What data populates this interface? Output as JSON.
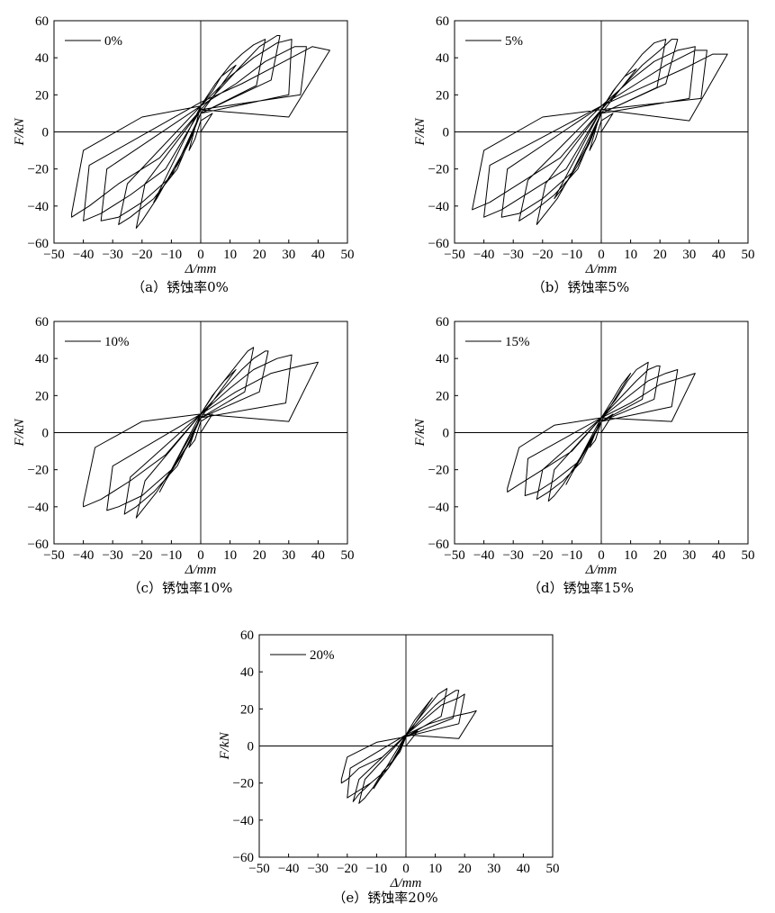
{
  "chart_data": [
    {
      "type": "line",
      "caption": "（a）锈蚀率0%",
      "legend": "0%",
      "xlabel": "Δ/mm",
      "ylabel": "F/kN",
      "xlim": [
        -50,
        50
      ],
      "ylim": [
        -60,
        60
      ],
      "xticks": [
        "−50",
        "−40",
        "−30",
        "−20",
        "−10",
        "0",
        "10",
        "20",
        "30",
        "40",
        "50"
      ],
      "yticks": [
        "60",
        "40",
        "20",
        "0",
        "−20",
        "−40",
        "−60"
      ],
      "series": [
        {
          "x": [
            0,
            2,
            4,
            0,
            -2,
            -4,
            0,
            4,
            7,
            12,
            0,
            -4,
            -8,
            -13,
            -16,
            0,
            5,
            10,
            14,
            18,
            22,
            19,
            0,
            -5,
            -10,
            -15,
            -20,
            -22,
            -19,
            0,
            7,
            14,
            20,
            26,
            27,
            24,
            0,
            -8,
            -16,
            -24,
            -28,
            -25,
            0,
            10,
            18,
            26,
            31,
            30,
            0,
            -10,
            -20,
            -28,
            -34,
            -32,
            0,
            12,
            22,
            32,
            36,
            34,
            0,
            -12,
            -24,
            -34,
            -40,
            -38,
            0,
            14,
            26,
            38,
            44,
            30,
            0,
            -14,
            -28,
            -38,
            -44,
            -44,
            -40,
            -20,
            0
          ],
          "y": [
            0,
            5,
            10,
            6,
            -4,
            -10,
            14,
            22,
            30,
            36,
            10,
            -6,
            -18,
            -30,
            -38,
            14,
            26,
            36,
            42,
            47,
            50,
            25,
            10,
            -8,
            -22,
            -36,
            -48,
            -52,
            -28,
            12,
            24,
            36,
            46,
            52,
            52,
            28,
            10,
            -20,
            -36,
            -46,
            -50,
            -28,
            14,
            30,
            40,
            48,
            50,
            20,
            10,
            -24,
            -38,
            -46,
            -48,
            -20,
            14,
            26,
            38,
            46,
            46,
            20,
            12,
            -20,
            -34,
            -44,
            -48,
            -18,
            16,
            26,
            36,
            46,
            44,
            8,
            12,
            -14,
            -28,
            -40,
            -46,
            -44,
            -10,
            8,
            14
          ]
        }
      ]
    },
    {
      "type": "line",
      "caption": "（b）锈蚀率5%",
      "legend": "5%",
      "xlabel": "Δ/mm",
      "ylabel": "F/kN",
      "xlim": [
        -50,
        50
      ],
      "ylim": [
        -60,
        60
      ],
      "xticks": [
        "−50",
        "−40",
        "−30",
        "−20",
        "−10",
        "0",
        "10",
        "20",
        "30",
        "40",
        "50"
      ],
      "yticks": [
        "60",
        "40",
        "20",
        "0",
        "−20",
        "−40",
        "−60"
      ],
      "series": [
        {
          "x": [
            0,
            2,
            4,
            0,
            -2,
            -4,
            0,
            4,
            8,
            12,
            0,
            -4,
            -8,
            -13,
            -16,
            0,
            5,
            10,
            14,
            18,
            22,
            19,
            0,
            -5,
            -10,
            -15,
            -20,
            -22,
            -19,
            0,
            7,
            14,
            20,
            24,
            26,
            22,
            0,
            -8,
            -16,
            -24,
            -28,
            -25,
            0,
            10,
            18,
            26,
            32,
            30,
            0,
            -10,
            -20,
            -28,
            -34,
            -32,
            0,
            12,
            22,
            32,
            36,
            34,
            0,
            -12,
            -24,
            -34,
            -40,
            -38,
            0,
            14,
            28,
            38,
            43,
            30,
            0,
            -14,
            -28,
            -38,
            -44,
            -44,
            -40,
            -20,
            0
          ],
          "y": [
            0,
            5,
            10,
            6,
            -4,
            -10,
            12,
            22,
            30,
            34,
            10,
            -6,
            -18,
            -30,
            -36,
            12,
            24,
            34,
            42,
            48,
            50,
            24,
            10,
            -8,
            -22,
            -36,
            -46,
            -50,
            -28,
            12,
            24,
            36,
            44,
            50,
            50,
            26,
            10,
            -20,
            -34,
            -44,
            -48,
            -26,
            14,
            28,
            38,
            44,
            46,
            18,
            10,
            -22,
            -36,
            -44,
            -46,
            -20,
            14,
            26,
            36,
            44,
            44,
            18,
            12,
            -20,
            -32,
            -42,
            -46,
            -18,
            14,
            24,
            34,
            42,
            42,
            6,
            12,
            -14,
            -28,
            -38,
            -42,
            -42,
            -10,
            8,
            12
          ]
        }
      ]
    },
    {
      "type": "line",
      "caption": "（c）锈蚀率10%",
      "legend": "10%",
      "xlabel": "Δ/mm",
      "ylabel": "F/kN",
      "xlim": [
        -50,
        50
      ],
      "ylim": [
        -60,
        60
      ],
      "xticks": [
        "−50",
        "−40",
        "−30",
        "−20",
        "−10",
        "0",
        "10",
        "20",
        "30",
        "40",
        "50"
      ],
      "yticks": [
        "60",
        "40",
        "20",
        "0",
        "−20",
        "−40",
        "−60"
      ],
      "series": [
        {
          "x": [
            0,
            2,
            4,
            0,
            -2,
            -4,
            0,
            4,
            8,
            12,
            0,
            -4,
            -8,
            -12,
            -14,
            0,
            5,
            10,
            14,
            16,
            18,
            15,
            0,
            -5,
            -10,
            -15,
            -20,
            -22,
            -19,
            0,
            7,
            14,
            18,
            22,
            23,
            20,
            0,
            -8,
            -16,
            -22,
            -26,
            -24,
            0,
            10,
            18,
            26,
            31,
            29,
            0,
            -10,
            -20,
            -28,
            -32,
            -30,
            0,
            12,
            24,
            34,
            40,
            30,
            0,
            -12,
            -24,
            -34,
            -40,
            -40,
            -36,
            -20,
            0
          ],
          "y": [
            0,
            5,
            10,
            6,
            -4,
            -8,
            10,
            20,
            28,
            34,
            8,
            -6,
            -16,
            -26,
            -32,
            10,
            22,
            32,
            40,
            44,
            46,
            22,
            8,
            -8,
            -20,
            -32,
            -42,
            -46,
            -26,
            10,
            22,
            34,
            40,
            44,
            44,
            22,
            8,
            -18,
            -32,
            -40,
            -44,
            -24,
            10,
            24,
            34,
            40,
            42,
            16,
            8,
            -20,
            -34,
            -40,
            -42,
            -18,
            10,
            22,
            32,
            36,
            38,
            6,
            10,
            -12,
            -26,
            -36,
            -40,
            -38,
            -8,
            6,
            10
          ]
        }
      ]
    },
    {
      "type": "line",
      "caption": "（d）锈蚀率15%",
      "legend": "15%",
      "xlabel": "Δ/mm",
      "ylabel": "F/kN",
      "xlim": [
        -50,
        50
      ],
      "ylim": [
        -60,
        60
      ],
      "xticks": [
        "−50",
        "−40",
        "−30",
        "−20",
        "−10",
        "0",
        "10",
        "20",
        "30",
        "40",
        "50"
      ],
      "yticks": [
        "60",
        "40",
        "20",
        "0",
        "−20",
        "−40",
        "−60"
      ],
      "series": [
        {
          "x": [
            0,
            2,
            4,
            0,
            -2,
            -4,
            0,
            4,
            7,
            10,
            0,
            -4,
            -7,
            -10,
            -12,
            0,
            5,
            9,
            12,
            15,
            16,
            14,
            0,
            -5,
            -9,
            -13,
            -16,
            -18,
            -16,
            0,
            6,
            12,
            16,
            19,
            20,
            18,
            0,
            -7,
            -13,
            -18,
            -22,
            -20,
            0,
            8,
            16,
            22,
            26,
            24,
            0,
            -8,
            -16,
            -22,
            -26,
            -25,
            0,
            10,
            20,
            28,
            32,
            24,
            0,
            -10,
            -20,
            -28,
            -32,
            -32,
            -28,
            -16,
            0
          ],
          "y": [
            0,
            5,
            10,
            6,
            -4,
            -8,
            8,
            18,
            26,
            32,
            6,
            -6,
            -14,
            -22,
            -28,
            8,
            18,
            28,
            34,
            37,
            38,
            18,
            6,
            -8,
            -18,
            -28,
            -34,
            -37,
            -20,
            8,
            18,
            28,
            34,
            36,
            36,
            18,
            6,
            -16,
            -26,
            -32,
            -36,
            -20,
            8,
            18,
            28,
            32,
            34,
            14,
            6,
            -16,
            -26,
            -32,
            -34,
            -14,
            8,
            16,
            26,
            30,
            32,
            6,
            8,
            -10,
            -20,
            -28,
            -32,
            -30,
            -8,
            4,
            8
          ]
        }
      ]
    },
    {
      "type": "line",
      "caption": "（e）锈蚀率20%",
      "legend": "20%",
      "xlabel": "Δ/mm",
      "ylabel": "F/kN",
      "xlim": [
        -50,
        50
      ],
      "ylim": [
        -60,
        60
      ],
      "xticks": [
        "−50",
        "−40",
        "−30",
        "−20",
        "−10",
        "0",
        "10",
        "20",
        "30",
        "40",
        "50"
      ],
      "yticks": [
        "60",
        "40",
        "20",
        "0",
        "−20",
        "−40",
        "−60"
      ],
      "series": [
        {
          "x": [
            0,
            2,
            4,
            0,
            -2,
            -4,
            0,
            3,
            6,
            9,
            0,
            -3,
            -6,
            -9,
            -11,
            0,
            4,
            8,
            11,
            13,
            14,
            12,
            0,
            -4,
            -8,
            -11,
            -14,
            -16,
            -14,
            0,
            5,
            10,
            14,
            17,
            18,
            16,
            0,
            -6,
            -12,
            -16,
            -18,
            -16,
            0,
            6,
            12,
            18,
            20,
            18,
            0,
            -6,
            -12,
            -18,
            -20,
            -19,
            0,
            8,
            16,
            22,
            24,
            18,
            0,
            -8,
            -16,
            -20,
            -22,
            -22,
            -20,
            -10,
            0
          ],
          "y": [
            0,
            4,
            8,
            5,
            -3,
            -7,
            6,
            14,
            20,
            26,
            5,
            -5,
            -12,
            -18,
            -23,
            6,
            14,
            22,
            28,
            30,
            31,
            16,
            5,
            -7,
            -14,
            -22,
            -28,
            -31,
            -18,
            6,
            14,
            22,
            27,
            30,
            30,
            15,
            5,
            -12,
            -20,
            -26,
            -30,
            -18,
            6,
            14,
            22,
            26,
            28,
            12,
            5,
            -12,
            -20,
            -26,
            -28,
            -12,
            6,
            12,
            16,
            18,
            19,
            4,
            6,
            -6,
            -12,
            -18,
            -20,
            -18,
            -6,
            2,
            5
          ]
        }
      ]
    }
  ]
}
